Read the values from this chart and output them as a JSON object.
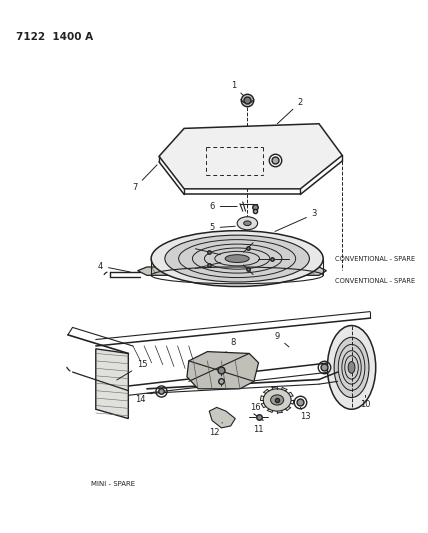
{
  "title": "7122  1400 A",
  "bg_color": "#ffffff",
  "line_color": "#222222",
  "text_color": "#222222",
  "conventional_label": "CONVENTIONAL - SPARE",
  "mini_label": "MINI - SPARE"
}
